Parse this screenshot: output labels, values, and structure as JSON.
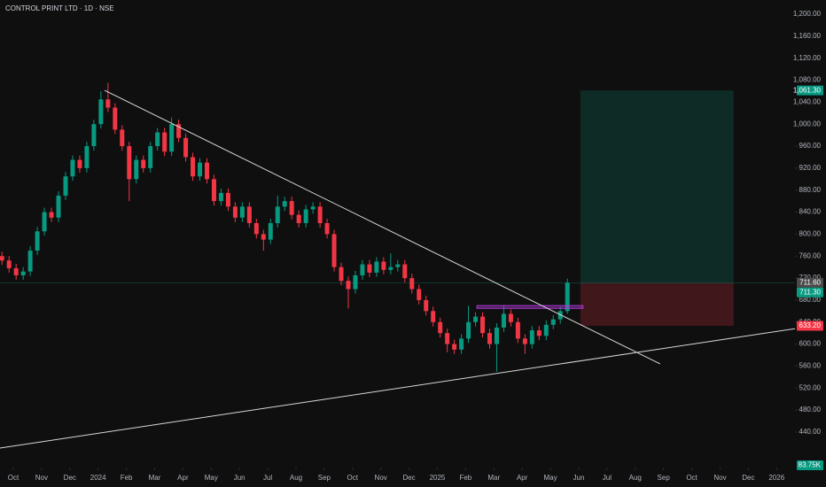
{
  "chart_data": {
    "type": "candlestick",
    "title": "CONTROL PRINT LTD · 1D · NSE",
    "x": [
      -0.4,
      -0.15,
      0.1,
      0.35,
      0.6,
      0.85,
      1.1,
      1.35,
      1.6,
      1.85,
      2.1,
      2.35,
      2.6,
      2.85,
      3.1,
      3.35,
      3.6,
      3.85,
      4.1,
      4.35,
      4.6,
      4.85,
      5.1,
      5.35,
      5.6,
      5.85,
      6.1,
      6.35,
      6.6,
      6.85,
      7.1,
      7.35,
      7.6,
      7.85,
      8.1,
      8.35,
      8.6,
      8.85,
      9.1,
      9.35,
      9.6,
      9.85,
      10.1,
      10.35,
      10.6,
      10.85,
      11.1,
      11.35,
      11.6,
      11.85,
      12.1,
      12.35,
      12.6,
      12.85,
      13.1,
      13.35,
      13.6,
      13.85,
      14.1,
      14.35,
      14.6,
      14.85,
      15.1,
      15.35,
      15.6,
      15.85,
      16.1,
      16.35,
      16.6,
      16.85,
      17.1,
      17.35,
      17.6,
      17.85,
      18.1,
      18.35,
      18.6,
      18.85,
      19.1,
      19.35,
      19.6
    ],
    "open": [
      760,
      752,
      738,
      725,
      732,
      770,
      805,
      840,
      830,
      870,
      905,
      935,
      920,
      960,
      1000,
      1045,
      1030,
      990,
      960,
      900,
      935,
      920,
      960,
      985,
      950,
      1000,
      975,
      940,
      905,
      930,
      900,
      860,
      875,
      850,
      830,
      850,
      820,
      800,
      790,
      820,
      850,
      860,
      835,
      820,
      845,
      850,
      820,
      800,
      740,
      715,
      700,
      725,
      745,
      730,
      750,
      735,
      740,
      745,
      720,
      700,
      680,
      660,
      640,
      620,
      600,
      590,
      610,
      640,
      650,
      620,
      600,
      630,
      655,
      640,
      610,
      600,
      625,
      615,
      635,
      645,
      660
    ],
    "high": [
      768,
      760,
      746,
      740,
      778,
      813,
      848,
      848,
      878,
      913,
      943,
      943,
      968,
      1008,
      1060,
      1075,
      1038,
      998,
      968,
      943,
      943,
      968,
      993,
      993,
      1012,
      1008,
      983,
      948,
      938,
      938,
      908,
      883,
      883,
      858,
      858,
      858,
      828,
      808,
      828,
      870,
      868,
      868,
      843,
      853,
      858,
      858,
      828,
      808,
      748,
      723,
      733,
      753,
      753,
      758,
      758,
      765,
      753,
      753,
      728,
      708,
      688,
      668,
      648,
      628,
      608,
      618,
      670,
      658,
      658,
      628,
      638,
      670,
      663,
      648,
      618,
      633,
      633,
      643,
      653,
      668,
      719
    ],
    "low": [
      744,
      730,
      717,
      717,
      724,
      762,
      797,
      822,
      822,
      862,
      897,
      912,
      912,
      952,
      992,
      1022,
      982,
      952,
      860,
      892,
      912,
      912,
      952,
      942,
      942,
      967,
      932,
      897,
      897,
      892,
      852,
      852,
      842,
      822,
      822,
      812,
      792,
      770,
      782,
      812,
      842,
      827,
      812,
      812,
      837,
      812,
      792,
      732,
      707,
      665,
      692,
      717,
      722,
      722,
      727,
      727,
      732,
      712,
      692,
      672,
      652,
      632,
      612,
      585,
      582,
      582,
      602,
      632,
      612,
      592,
      550,
      622,
      632,
      602,
      582,
      592,
      607,
      607,
      627,
      637,
      655
    ],
    "close": [
      752,
      738,
      725,
      732,
      770,
      805,
      840,
      830,
      870,
      905,
      935,
      920,
      960,
      1000,
      1045,
      1030,
      990,
      960,
      900,
      935,
      920,
      960,
      985,
      950,
      1000,
      975,
      940,
      905,
      930,
      900,
      860,
      875,
      850,
      830,
      850,
      820,
      800,
      790,
      820,
      850,
      860,
      835,
      820,
      845,
      850,
      820,
      800,
      740,
      715,
      700,
      725,
      745,
      730,
      750,
      735,
      740,
      745,
      720,
      700,
      680,
      660,
      640,
      620,
      600,
      590,
      610,
      640,
      650,
      620,
      600,
      630,
      655,
      640,
      610,
      600,
      625,
      615,
      635,
      645,
      660,
      711.6
    ],
    "up_color": "#089981",
    "down_color": "#f23645",
    "xlim": [
      -0.47,
      27.65
    ],
    "ylim": [
      375.5,
      1225.8
    ],
    "xticks": [
      {
        "value": 0,
        "label": "Oct"
      },
      {
        "value": 1,
        "label": "Nov"
      },
      {
        "value": 2,
        "label": "Dec"
      },
      {
        "value": 3,
        "label": "2024"
      },
      {
        "value": 4,
        "label": "Feb"
      },
      {
        "value": 5,
        "label": "Mar"
      },
      {
        "value": 6,
        "label": "Apr"
      },
      {
        "value": 7,
        "label": "May"
      },
      {
        "value": 8,
        "label": "Jun"
      },
      {
        "value": 9,
        "label": "Jul"
      },
      {
        "value": 10,
        "label": "Aug"
      },
      {
        "value": 11,
        "label": "Sep"
      },
      {
        "value": 12,
        "label": "Oct"
      },
      {
        "value": 13,
        "label": "Nov"
      },
      {
        "value": 14,
        "label": "Dec"
      },
      {
        "value": 15,
        "label": "2025"
      },
      {
        "value": 16,
        "label": "Feb"
      },
      {
        "value": 17,
        "label": "Mar"
      },
      {
        "value": 18,
        "label": "Apr"
      },
      {
        "value": 19,
        "label": "May"
      },
      {
        "value": 20,
        "label": "Jun"
      },
      {
        "value": 21,
        "label": "Jul"
      },
      {
        "value": 22,
        "label": "Aug"
      },
      {
        "value": 23,
        "label": "Sep"
      },
      {
        "value": 24,
        "label": "Oct"
      },
      {
        "value": 25,
        "label": "Nov"
      },
      {
        "value": 26,
        "label": "Dec"
      },
      {
        "value": 27,
        "label": "2026"
      }
    ],
    "yticks": [
      {
        "value": 440,
        "label": "440.00"
      },
      {
        "value": 480,
        "label": "480.00"
      },
      {
        "value": 520,
        "label": "520.00"
      },
      {
        "value": 560,
        "label": "560.00"
      },
      {
        "value": 600,
        "label": "600.00"
      },
      {
        "value": 640,
        "label": "640.00"
      },
      {
        "value": 680,
        "label": "680.00"
      },
      {
        "value": 720,
        "label": "720.00"
      },
      {
        "value": 760,
        "label": "760.00"
      },
      {
        "value": 800,
        "label": "800.00"
      },
      {
        "value": 840,
        "label": "840.00"
      },
      {
        "value": 880,
        "label": "880.00"
      },
      {
        "value": 920,
        "label": "920.00"
      },
      {
        "value": 960,
        "label": "960.00"
      },
      {
        "value": 1000,
        "label": "1,000.00"
      },
      {
        "value": 1040,
        "label": "1,040.00"
      },
      {
        "value": 1080,
        "label": "1,080.00"
      },
      {
        "value": 1120,
        "label": "1,120.00"
      },
      {
        "value": 1160,
        "label": "1,160.00"
      },
      {
        "value": 1200,
        "label": "1,200.00"
      }
    ],
    "price_labels": [
      {
        "value": 1061.3,
        "label": "1,061.30",
        "color": "#089981"
      },
      {
        "value": 711.6,
        "label": "711.60",
        "color": "#4a4a4a"
      },
      {
        "value": 711.3,
        "label": "711.30",
        "color": "#089981"
      },
      {
        "value": 633.2,
        "label": "633.20",
        "color": "#f23645"
      }
    ],
    "volume_label": {
      "value": 83750,
      "label": "83.75K",
      "color": "#089981"
    },
    "last_price_line": 711.6,
    "trendlines": [
      {
        "x": [
          3.23,
          22.88
        ],
        "y": [
          1061.5,
          564
        ]
      },
      {
        "x": [
          -0.47,
          27.65
        ],
        "y": [
          411,
          628
        ]
      }
    ],
    "zone": {
      "x": [
        16.4,
        20.15
      ],
      "y": [
        665,
        670
      ],
      "color": "#b03ad6"
    },
    "position": {
      "x": [
        20.06,
        25.48
      ],
      "entry": 711.3,
      "target": 1061.3,
      "stop": 633.2
    }
  }
}
